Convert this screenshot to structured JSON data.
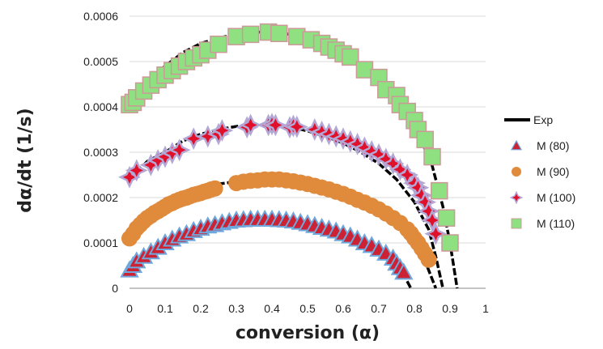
{
  "chart_data": {
    "type": "scatter",
    "xlabel": "conversion (α)",
    "ylabel": "dα/dt (1/s)",
    "xlim": [
      0,
      1
    ],
    "ylim": [
      0,
      0.0006
    ],
    "x_ticks": [
      "0",
      "0.1",
      "0.2",
      "0.3",
      "0.4",
      "0.5",
      "0.6",
      "0.7",
      "0.8",
      "0.9",
      "1"
    ],
    "y_ticks": [
      "0",
      "0.0001",
      "0.0002",
      "0.0003",
      "0.0004",
      "0.0005",
      "0.0006"
    ],
    "grid": "horizontal",
    "legend_position": "right",
    "colors": {
      "exp": "#000000",
      "m80": "#cc2233",
      "m80_edge": "#6fa8dc",
      "m90": "#e08a3c",
      "m100": "#e0102a",
      "m100_edge": "#b4a7d6",
      "m110": "#8fe080",
      "m110_edge": "#cc9999"
    },
    "series": [
      {
        "name": "Exp",
        "kind": "line",
        "curves": [
          [
            [
              0.0,
              4e-05
            ],
            [
              0.02,
              6e-05
            ],
            [
              0.05,
              8e-05
            ],
            [
              0.1,
              0.000105
            ],
            [
              0.15,
              0.00012
            ],
            [
              0.2,
              0.000135
            ],
            [
              0.25,
              0.000145
            ],
            [
              0.3,
              0.00015
            ],
            [
              0.35,
              0.000152
            ],
            [
              0.4,
              0.00015
            ],
            [
              0.45,
              0.000147
            ],
            [
              0.5,
              0.00014
            ],
            [
              0.55,
              0.00013
            ],
            [
              0.6,
              0.000118
            ],
            [
              0.65,
              0.0001
            ],
            [
              0.7,
              8e-05
            ],
            [
              0.74,
              6e-05
            ],
            [
              0.77,
              3e-05
            ],
            [
              0.79,
              0.0
            ]
          ],
          [
            [
              0.0,
              0.00011
            ],
            [
              0.05,
              0.00016
            ],
            [
              0.1,
              0.00019
            ],
            [
              0.15,
              0.00021
            ],
            [
              0.2,
              0.00022
            ],
            [
              0.25,
              0.00023
            ],
            [
              0.3,
              0.000235
            ],
            [
              0.35,
              0.00024
            ],
            [
              0.4,
              0.00024
            ],
            [
              0.45,
              0.000238
            ],
            [
              0.5,
              0.000232
            ],
            [
              0.55,
              0.000222
            ],
            [
              0.6,
              0.00021
            ],
            [
              0.65,
              0.00019
            ],
            [
              0.7,
              0.000168
            ],
            [
              0.75,
              0.00014
            ],
            [
              0.8,
              0.0001
            ],
            [
              0.83,
              6e-05
            ],
            [
              0.86,
              0.0
            ]
          ],
          [
            [
              0.0,
              0.00024
            ],
            [
              0.05,
              0.00028
            ],
            [
              0.1,
              0.0003
            ],
            [
              0.15,
              0.000325
            ],
            [
              0.2,
              0.00034
            ],
            [
              0.25,
              0.00035
            ],
            [
              0.3,
              0.000357
            ],
            [
              0.35,
              0.00036
            ],
            [
              0.4,
              0.00036
            ],
            [
              0.45,
              0.000356
            ],
            [
              0.5,
              0.000347
            ],
            [
              0.55,
              0.000335
            ],
            [
              0.6,
              0.00032
            ],
            [
              0.65,
              0.0003
            ],
            [
              0.7,
              0.000275
            ],
            [
              0.75,
              0.00024
            ],
            [
              0.8,
              0.00019
            ],
            [
              0.84,
              0.00013
            ],
            [
              0.86,
              7e-05
            ],
            [
              0.88,
              0.0
            ]
          ],
          [
            [
              0.0,
              0.0004
            ],
            [
              0.05,
              0.000455
            ],
            [
              0.1,
              0.00049
            ],
            [
              0.15,
              0.00052
            ],
            [
              0.2,
              0.00054
            ],
            [
              0.25,
              0.000552
            ],
            [
              0.3,
              0.00056
            ],
            [
              0.35,
              0.000565
            ],
            [
              0.4,
              0.000565
            ],
            [
              0.45,
              0.00056
            ],
            [
              0.5,
              0.00055
            ],
            [
              0.55,
              0.000535
            ],
            [
              0.6,
              0.000515
            ],
            [
              0.65,
              0.00049
            ],
            [
              0.7,
              0.00046
            ],
            [
              0.75,
              0.00042
            ],
            [
              0.8,
              0.00036
            ],
            [
              0.85,
              0.00027
            ],
            [
              0.88,
              0.00018
            ],
            [
              0.9,
              0.0001
            ],
            [
              0.92,
              0.0
            ]
          ]
        ]
      },
      {
        "name": "M (80)",
        "marker": "triangle",
        "x": [
          0.0,
          0.01,
          0.02,
          0.04,
          0.06,
          0.08,
          0.1,
          0.12,
          0.14,
          0.16,
          0.18,
          0.2,
          0.22,
          0.24,
          0.26,
          0.28,
          0.3,
          0.32,
          0.34,
          0.36,
          0.38,
          0.4,
          0.42,
          0.44,
          0.46,
          0.48,
          0.5,
          0.52,
          0.54,
          0.56,
          0.58,
          0.6,
          0.62,
          0.64,
          0.66,
          0.68,
          0.7,
          0.72,
          0.74,
          0.75,
          0.76,
          0.77
        ],
        "y": [
          4e-05,
          5e-05,
          6e-05,
          7e-05,
          8e-05,
          9e-05,
          0.0001,
          0.000108,
          0.000115,
          0.00012,
          0.000127,
          0.000132,
          0.000137,
          0.00014,
          0.000144,
          0.000147,
          0.00015,
          0.000151,
          0.000152,
          0.000152,
          0.000152,
          0.000152,
          0.000151,
          0.00015,
          0.000148,
          0.000145,
          0.000142,
          0.000138,
          0.000134,
          0.00013,
          0.000126,
          0.00012,
          0.000115,
          0.000108,
          0.0001,
          9.4e-05,
          8.6e-05,
          7.7e-05,
          6.6e-05,
          5.5e-05,
          4.5e-05,
          3.5e-05
        ]
      },
      {
        "name": "M (90)",
        "marker": "circle",
        "x": [
          0.0,
          0.01,
          0.02,
          0.03,
          0.04,
          0.05,
          0.06,
          0.07,
          0.08,
          0.09,
          0.1,
          0.11,
          0.12,
          0.13,
          0.14,
          0.15,
          0.16,
          0.17,
          0.18,
          0.19,
          0.2,
          0.21,
          0.22,
          0.23,
          0.24,
          0.3,
          0.32,
          0.34,
          0.36,
          0.38,
          0.4,
          0.42,
          0.44,
          0.46,
          0.48,
          0.5,
          0.52,
          0.54,
          0.56,
          0.58,
          0.6,
          0.62,
          0.64,
          0.66,
          0.68,
          0.7,
          0.72,
          0.74,
          0.76,
          0.78,
          0.79,
          0.8,
          0.81,
          0.82,
          0.83,
          0.84
        ],
        "y": [
          0.00011,
          0.00012,
          0.000132,
          0.00014,
          0.000148,
          0.000155,
          0.00016,
          0.000166,
          0.00017,
          0.000175,
          0.00018,
          0.000185,
          0.000188,
          0.000192,
          0.000195,
          0.000198,
          0.0002,
          0.000203,
          0.000206,
          0.000208,
          0.00021,
          0.000213,
          0.000215,
          0.000218,
          0.00022,
          0.000232,
          0.000235,
          0.000237,
          0.000238,
          0.00024,
          0.00024,
          0.00024,
          0.000238,
          0.000236,
          0.000233,
          0.00023,
          0.000226,
          0.000222,
          0.000218,
          0.000213,
          0.000208,
          0.000202,
          0.000195,
          0.000189,
          0.000182,
          0.000174,
          0.000165,
          0.000155,
          0.000144,
          0.00013,
          0.000121,
          0.00011,
          0.0001,
          8.8e-05,
          7.6e-05,
          6.3e-05
        ]
      },
      {
        "name": "M (100)",
        "marker": "star",
        "x": [
          0.0,
          0.02,
          0.06,
          0.08,
          0.1,
          0.12,
          0.14,
          0.18,
          0.22,
          0.25,
          0.26,
          0.33,
          0.34,
          0.39,
          0.4,
          0.41,
          0.45,
          0.46,
          0.47,
          0.52,
          0.54,
          0.56,
          0.58,
          0.6,
          0.62,
          0.64,
          0.66,
          0.68,
          0.7,
          0.72,
          0.74,
          0.76,
          0.78,
          0.8,
          0.81,
          0.82,
          0.83,
          0.84,
          0.85,
          0.86
        ],
        "y": [
          0.000245,
          0.00026,
          0.000272,
          0.000282,
          0.00029,
          0.000298,
          0.000305,
          0.00033,
          0.000335,
          0.00034,
          0.000348,
          0.000355,
          0.00036,
          0.00036,
          0.000362,
          0.00036,
          0.000355,
          0.000358,
          0.000356,
          0.00035,
          0.000345,
          0.00034,
          0.000335,
          0.00033,
          0.000324,
          0.000318,
          0.00031,
          0.000302,
          0.000295,
          0.000285,
          0.000275,
          0.000262,
          0.00025,
          0.000232,
          0.000222,
          0.000205,
          0.00019,
          0.00017,
          0.00015,
          0.00012
        ]
      },
      {
        "name": "M (110)",
        "marker": "square",
        "x": [
          0.0,
          0.01,
          0.02,
          0.04,
          0.06,
          0.08,
          0.1,
          0.12,
          0.14,
          0.16,
          0.18,
          0.2,
          0.22,
          0.25,
          0.3,
          0.34,
          0.39,
          0.42,
          0.47,
          0.51,
          0.54,
          0.56,
          0.58,
          0.6,
          0.62,
          0.66,
          0.7,
          0.72,
          0.75,
          0.76,
          0.78,
          0.8,
          0.81,
          0.83,
          0.85,
          0.87,
          0.89,
          0.9
        ],
        "y": [
          0.000405,
          0.00041,
          0.00042,
          0.000435,
          0.000448,
          0.00046,
          0.00047,
          0.00048,
          0.00049,
          0.0005,
          0.000508,
          0.000515,
          0.000525,
          0.000538,
          0.000555,
          0.00056,
          0.000565,
          0.000562,
          0.000555,
          0.000548,
          0.00054,
          0.000532,
          0.000525,
          0.000517,
          0.00051,
          0.000482,
          0.000465,
          0.000438,
          0.000425,
          0.000405,
          0.00039,
          0.00037,
          0.00035,
          0.000328,
          0.00029,
          0.000215,
          0.000155,
          0.0001
        ]
      }
    ]
  }
}
